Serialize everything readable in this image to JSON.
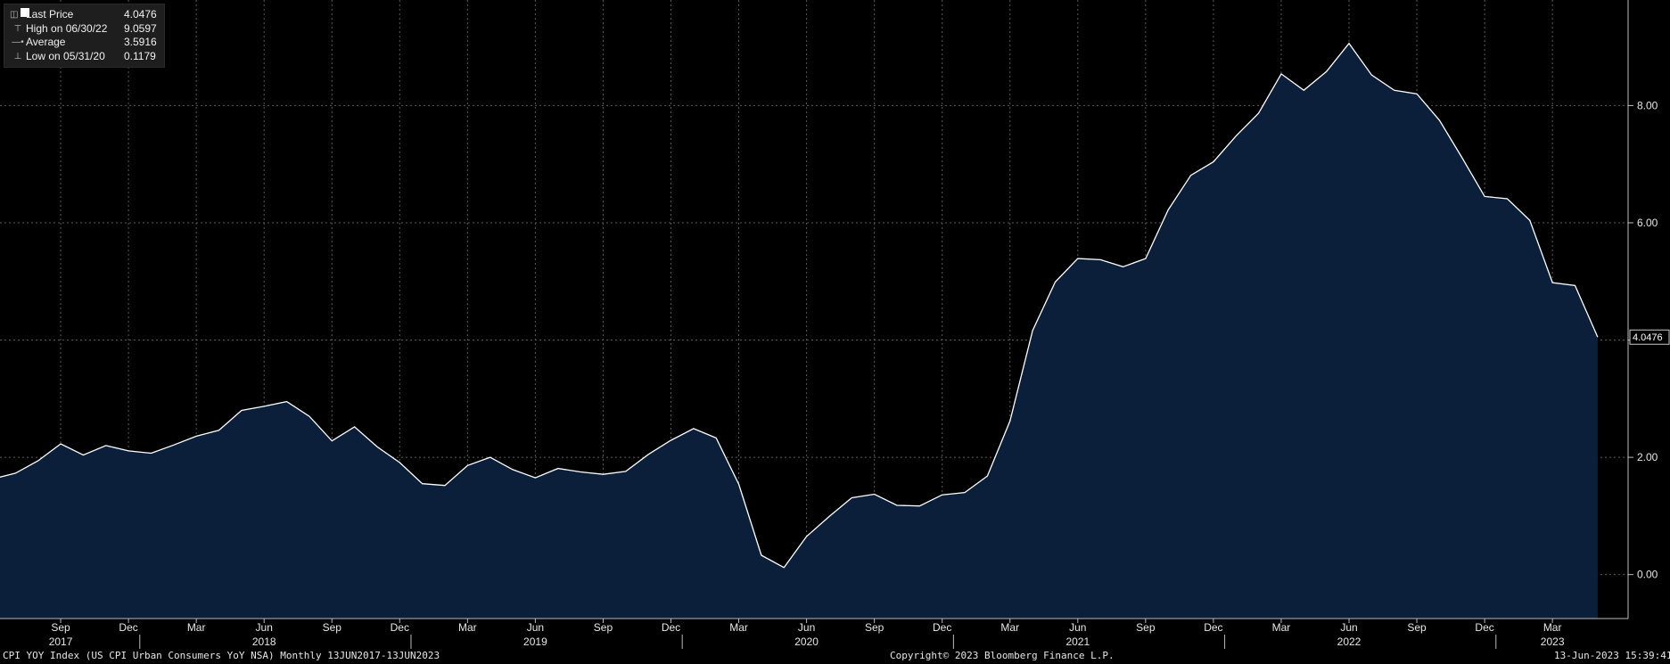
{
  "legend": {
    "last": {
      "label": "Last Price",
      "value": "4.0476"
    },
    "high": {
      "label": "High on 06/30/22",
      "value": "9.0597"
    },
    "average": {
      "label": "Average",
      "value": "3.5916"
    },
    "low": {
      "label": "Low on 05/31/20",
      "value": "0.1179"
    }
  },
  "footer": {
    "left": "CPI YOY Index (US CPI Urban Consumers YoY NSA)  Monthly 13JUN2017-13JUN2023",
    "center": "Copyright© 2023 Bloomberg Finance L.P.",
    "right": "13-Jun-2023 15:39:41"
  },
  "colors": {
    "background": "#000000",
    "area_fill": "#0b1f3a",
    "line": "#ffffff",
    "grid": "#555555",
    "text": "#e6e6e6"
  },
  "chart_data": {
    "type": "area",
    "series": [
      {
        "name": "Last Price",
        "x": [
          "2017-06",
          "2017-07",
          "2017-08",
          "2017-09",
          "2017-10",
          "2017-11",
          "2017-12",
          "2018-01",
          "2018-02",
          "2018-03",
          "2018-04",
          "2018-05",
          "2018-06",
          "2018-07",
          "2018-08",
          "2018-09",
          "2018-10",
          "2018-11",
          "2018-12",
          "2019-01",
          "2019-02",
          "2019-03",
          "2019-04",
          "2019-05",
          "2019-06",
          "2019-07",
          "2019-08",
          "2019-09",
          "2019-10",
          "2019-11",
          "2019-12",
          "2020-01",
          "2020-02",
          "2020-03",
          "2020-04",
          "2020-05",
          "2020-06",
          "2020-07",
          "2020-08",
          "2020-09",
          "2020-10",
          "2020-11",
          "2020-12",
          "2021-01",
          "2021-02",
          "2021-03",
          "2021-04",
          "2021-05",
          "2021-06",
          "2021-07",
          "2021-08",
          "2021-09",
          "2021-10",
          "2021-11",
          "2021-12",
          "2022-01",
          "2022-02",
          "2022-03",
          "2022-04",
          "2022-05",
          "2022-06",
          "2022-07",
          "2022-08",
          "2022-09",
          "2022-10",
          "2022-11",
          "2022-12",
          "2023-01",
          "2023-02",
          "2023-03",
          "2023-04",
          "2023-05"
        ],
        "values": [
          1.63,
          1.73,
          1.94,
          2.23,
          2.04,
          2.2,
          2.11,
          2.07,
          2.21,
          2.36,
          2.46,
          2.8,
          2.87,
          2.95,
          2.7,
          2.28,
          2.52,
          2.18,
          1.91,
          1.55,
          1.52,
          1.86,
          2.0,
          1.79,
          1.65,
          1.81,
          1.75,
          1.71,
          1.76,
          2.05,
          2.29,
          2.49,
          2.33,
          1.54,
          0.33,
          0.12,
          0.65,
          0.99,
          1.31,
          1.37,
          1.18,
          1.17,
          1.36,
          1.4,
          1.68,
          2.62,
          4.16,
          4.99,
          5.39,
          5.37,
          5.25,
          5.39,
          6.22,
          6.81,
          7.04,
          7.48,
          7.87,
          8.54,
          8.26,
          8.58,
          9.06,
          8.52,
          8.26,
          8.2,
          7.75,
          7.11,
          6.45,
          6.41,
          6.04,
          4.98,
          4.93,
          4.05
        ]
      }
    ],
    "y_ticks": [
      "0.00",
      "2.00",
      "4.00",
      "6.00",
      "8.00"
    ],
    "ylim": [
      -0.75,
      9.8
    ],
    "x_tick_labels": [
      {
        "month": "2017-09",
        "label": "Sep"
      },
      {
        "month": "2017-12",
        "label": "Dec"
      },
      {
        "month": "2018-03",
        "label": "Mar"
      },
      {
        "month": "2018-06",
        "label": "Jun"
      },
      {
        "month": "2018-09",
        "label": "Sep"
      },
      {
        "month": "2018-12",
        "label": "Dec"
      },
      {
        "month": "2019-03",
        "label": "Mar"
      },
      {
        "month": "2019-06",
        "label": "Jun"
      },
      {
        "month": "2019-09",
        "label": "Sep"
      },
      {
        "month": "2019-12",
        "label": "Dec"
      },
      {
        "month": "2020-03",
        "label": "Mar"
      },
      {
        "month": "2020-06",
        "label": "Jun"
      },
      {
        "month": "2020-09",
        "label": "Sep"
      },
      {
        "month": "2020-12",
        "label": "Dec"
      },
      {
        "month": "2021-03",
        "label": "Mar"
      },
      {
        "month": "2021-06",
        "label": "Jun"
      },
      {
        "month": "2021-09",
        "label": "Sep"
      },
      {
        "month": "2021-12",
        "label": "Dec"
      },
      {
        "month": "2022-03",
        "label": "Mar"
      },
      {
        "month": "2022-06",
        "label": "Jun"
      },
      {
        "month": "2022-09",
        "label": "Sep"
      },
      {
        "month": "2022-12",
        "label": "Dec"
      },
      {
        "month": "2023-03",
        "label": "Mar"
      }
    ],
    "year_labels": [
      {
        "month": "2017-09",
        "label": "2017"
      },
      {
        "month": "2018-06",
        "label": "2018"
      },
      {
        "month": "2019-06",
        "label": "2019"
      },
      {
        "month": "2020-06",
        "label": "2020"
      },
      {
        "month": "2021-06",
        "label": "2021"
      },
      {
        "month": "2022-06",
        "label": "2022"
      },
      {
        "month": "2023-03",
        "label": "2023"
      }
    ],
    "last_value_label": "4.0476",
    "grid": true,
    "legend_position": "top-left"
  }
}
